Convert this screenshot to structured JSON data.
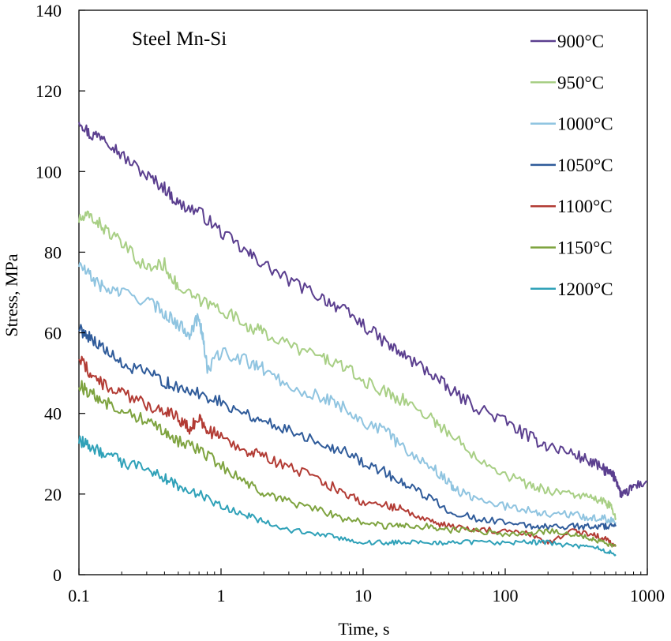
{
  "chart_data": {
    "type": "line",
    "annotation": "Steel Mn-Si",
    "xlabel": "Time, s",
    "ylabel": "Stress, MPa",
    "xscale": "log",
    "xlim": [
      0.1,
      1000
    ],
    "ylim": [
      0,
      140
    ],
    "xticks": [
      0.1,
      1,
      10,
      100,
      1000
    ],
    "xtick_labels": [
      "0.1",
      "1",
      "10",
      "100",
      "1000"
    ],
    "yticks": [
      0,
      20,
      40,
      60,
      80,
      100,
      120,
      140
    ],
    "ytick_labels": [
      "0",
      "20",
      "40",
      "60",
      "80",
      "100",
      "120",
      "140"
    ],
    "grid": false,
    "legend_position": "top-right",
    "series": [
      {
        "name": "900°C",
        "color": "#5b3f8f",
        "x": [
          0.1,
          0.12,
          0.15,
          0.2,
          0.3,
          0.4,
          0.5,
          0.7,
          1,
          1.5,
          2,
          3,
          5,
          7,
          10,
          15,
          20,
          30,
          40,
          60,
          100,
          150,
          200,
          300,
          400,
          500,
          550,
          600,
          650,
          700,
          800,
          1000
        ],
        "y": [
          113,
          109,
          109,
          104,
          99,
          96,
          92,
          90,
          85,
          80,
          77,
          73,
          69,
          66,
          62,
          57,
          54,
          50,
          46,
          42,
          38,
          34,
          32,
          30,
          28,
          26,
          25,
          24,
          20,
          20,
          22,
          23
        ]
      },
      {
        "name": "950°C",
        "color": "#a8cf85",
        "x": [
          0.1,
          0.12,
          0.15,
          0.2,
          0.3,
          0.4,
          0.5,
          0.7,
          1,
          1.5,
          2,
          3,
          5,
          7,
          10,
          15,
          20,
          30,
          40,
          60,
          100,
          150,
          200,
          300,
          400,
          500,
          550,
          600
        ],
        "y": [
          88,
          89,
          86,
          82,
          76,
          77,
          71,
          68,
          66,
          62,
          60,
          57,
          54,
          52,
          48,
          45,
          43,
          39,
          35,
          30,
          25,
          22,
          21,
          20,
          19,
          18,
          17,
          14
        ]
      },
      {
        "name": "1000°C",
        "color": "#8fc4e0",
        "x": [
          0.1,
          0.12,
          0.15,
          0.2,
          0.3,
          0.4,
          0.5,
          0.6,
          0.7,
          0.75,
          0.8,
          1,
          1.5,
          2,
          3,
          5,
          7,
          10,
          15,
          20,
          30,
          40,
          45,
          60,
          100,
          150,
          200,
          300,
          400,
          500,
          600
        ],
        "y": [
          77,
          74,
          71,
          70,
          68,
          65,
          62,
          60,
          64,
          58,
          51,
          55,
          53,
          51,
          47,
          44,
          42,
          38,
          35,
          31,
          27,
          23,
          21,
          19,
          17,
          16,
          15,
          15,
          14,
          14,
          13
        ]
      },
      {
        "name": "1050°C",
        "color": "#2f5b9a",
        "x": [
          0.1,
          0.12,
          0.15,
          0.2,
          0.3,
          0.4,
          0.5,
          0.7,
          1,
          1.5,
          2,
          3,
          5,
          7,
          10,
          15,
          20,
          30,
          40,
          60,
          100,
          150,
          200,
          300,
          400,
          500,
          600
        ],
        "y": [
          61,
          59,
          56,
          52,
          50,
          48,
          46,
          45,
          43,
          40,
          38,
          36,
          33,
          31,
          28,
          25,
          22,
          19,
          16,
          14,
          13,
          12,
          12,
          12,
          12,
          12,
          12
        ]
      },
      {
        "name": "1100°C",
        "color": "#b23b34",
        "x": [
          0.1,
          0.12,
          0.15,
          0.2,
          0.3,
          0.4,
          0.5,
          0.6,
          0.7,
          0.8,
          1,
          1.5,
          2,
          3,
          5,
          7,
          10,
          15,
          20,
          30,
          40,
          60,
          100,
          150,
          200,
          300,
          400,
          500,
          600
        ],
        "y": [
          54,
          50,
          47,
          45,
          42,
          41,
          39,
          36,
          39,
          36,
          34,
          31,
          29,
          27,
          23,
          21,
          18,
          17,
          16,
          13,
          12,
          11,
          11,
          10,
          8,
          11,
          10,
          9,
          7
        ]
      },
      {
        "name": "1150°C",
        "color": "#7ea33f",
        "x": [
          0.1,
          0.12,
          0.15,
          0.2,
          0.3,
          0.4,
          0.5,
          0.7,
          1,
          1.5,
          2,
          3,
          5,
          7,
          10,
          15,
          20,
          30,
          40,
          60,
          100,
          150,
          200,
          300,
          400,
          500,
          600
        ],
        "y": [
          47,
          45,
          43,
          41,
          38,
          36,
          33,
          31,
          27,
          23,
          20,
          18,
          16,
          14,
          13,
          12,
          12,
          12,
          11,
          11,
          10,
          10,
          11,
          10,
          9,
          8,
          7
        ]
      },
      {
        "name": "1200°C",
        "color": "#2fa1b8",
        "x": [
          0.1,
          0.12,
          0.15,
          0.2,
          0.3,
          0.4,
          0.5,
          0.7,
          1,
          1.5,
          2,
          3,
          5,
          7,
          10,
          15,
          20,
          30,
          40,
          60,
          100,
          150,
          200,
          300,
          400,
          500,
          600
        ],
        "y": [
          33,
          32,
          30,
          28,
          26,
          24,
          22,
          20,
          17,
          15,
          13,
          11,
          10,
          9,
          8,
          8,
          8,
          8,
          8,
          8,
          8,
          8,
          8,
          7,
          7,
          6,
          5
        ]
      }
    ]
  }
}
